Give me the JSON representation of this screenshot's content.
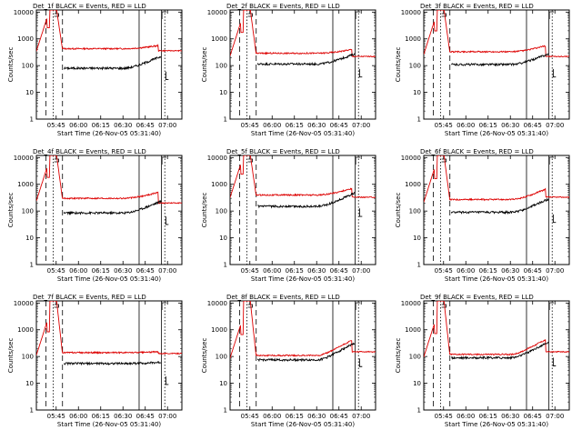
{
  "figure": {
    "start_time_label": "Start Time (26-Nov-05 05:31:40)",
    "ylabel": "Counts/sec",
    "x_tick_labels": [
      "05:45",
      "06:00",
      "06:15",
      "06:30",
      "06:45",
      "07:00"
    ],
    "y_tick_labels": [
      "1",
      "10",
      "100",
      "1000",
      "10000"
    ],
    "colors": {
      "events": "#000000",
      "lld": "#dd0000",
      "axes": "#000000"
    }
  },
  "chart_data": [
    {
      "type": "line",
      "title": "Det_1f BLACK = Events, RED = LLD",
      "xlabel": "Start Time (26-Nov-05 05:31:40)",
      "ylabel": "Counts/sec",
      "yscale": "log",
      "ylim": [
        1,
        12000
      ],
      "xlim_minutes": [
        0,
        98
      ],
      "series": [
        {
          "name": "Events",
          "color": "#000000",
          "base": 80,
          "end": 200
        },
        {
          "name": "LLD",
          "color": "#dd0000",
          "base": 430,
          "end": 560,
          "tail": 360
        }
      ]
    },
    {
      "type": "line",
      "title": "Det_2f BLACK = Events, RED = LLD",
      "xlabel": "Start Time (26-Nov-05 05:31:40)",
      "ylabel": "Counts/sec",
      "yscale": "log",
      "ylim": [
        1,
        12000
      ],
      "xlim_minutes": [
        0,
        98
      ],
      "series": [
        {
          "name": "Events",
          "color": "#000000",
          "base": 115,
          "end": 250
        },
        {
          "name": "LLD",
          "color": "#dd0000",
          "base": 290,
          "end": 400,
          "tail": 220
        }
      ]
    },
    {
      "type": "line",
      "title": "Det_3f BLACK = Events, RED = LLD",
      "xlabel": "Start Time (26-Nov-05 05:31:40)",
      "ylabel": "Counts/sec",
      "yscale": "log",
      "ylim": [
        1,
        12000
      ],
      "xlim_minutes": [
        0,
        98
      ],
      "series": [
        {
          "name": "Events",
          "color": "#000000",
          "base": 110,
          "end": 250
        },
        {
          "name": "LLD",
          "color": "#dd0000",
          "base": 330,
          "end": 550,
          "tail": 220
        }
      ]
    },
    {
      "type": "line",
      "title": "Det_4f BLACK = Events, RED = LLD",
      "xlabel": "Start Time (26-Nov-05 05:31:40)",
      "ylabel": "Counts/sec",
      "yscale": "log",
      "ylim": [
        1,
        12000
      ],
      "xlim_minutes": [
        0,
        98
      ],
      "series": [
        {
          "name": "Events",
          "color": "#000000",
          "base": 85,
          "end": 210
        },
        {
          "name": "LLD",
          "color": "#dd0000",
          "base": 300,
          "end": 500,
          "tail": 200
        }
      ]
    },
    {
      "type": "line",
      "title": "Det_5f BLACK = Events, RED = LLD",
      "xlabel": "Start Time (26-Nov-05 05:31:40)",
      "ylabel": "Counts/sec",
      "yscale": "log",
      "ylim": [
        1,
        12000
      ],
      "xlim_minutes": [
        0,
        98
      ],
      "series": [
        {
          "name": "Events",
          "color": "#000000",
          "base": 150,
          "end": 420
        },
        {
          "name": "LLD",
          "color": "#dd0000",
          "base": 400,
          "end": 700,
          "tail": 330
        }
      ]
    },
    {
      "type": "line",
      "title": "Det_6f BLACK = Events, RED = LLD",
      "xlabel": "Start Time (26-Nov-05 05:31:40)",
      "ylabel": "Counts/sec",
      "yscale": "log",
      "ylim": [
        1,
        12000
      ],
      "xlim_minutes": [
        0,
        98
      ],
      "series": [
        {
          "name": "Events",
          "color": "#000000",
          "base": 90,
          "end": 250
        },
        {
          "name": "LLD",
          "color": "#dd0000",
          "base": 270,
          "end": 650,
          "tail": 330
        }
      ]
    },
    {
      "type": "line",
      "title": "Det_7f BLACK = Events, RED = LLD",
      "xlabel": "Start Time (26-Nov-05 05:31:40)",
      "ylabel": "Counts/sec",
      "yscale": "log",
      "ylim": [
        1,
        12000
      ],
      "xlim_minutes": [
        0,
        98
      ],
      "series": [
        {
          "name": "Events",
          "color": "#000000",
          "base": 55,
          "end": 60
        },
        {
          "name": "LLD",
          "color": "#dd0000",
          "base": 140,
          "end": 150,
          "tail": 130
        }
      ]
    },
    {
      "type": "line",
      "title": "Det_8f BLACK = Events, RED = LLD",
      "xlabel": "Start Time (26-Nov-05 05:31:40)",
      "ylabel": "Counts/sec",
      "yscale": "log",
      "ylim": [
        1,
        12000
      ],
      "xlim_minutes": [
        0,
        98
      ],
      "series": [
        {
          "name": "Events",
          "color": "#000000",
          "base": 75,
          "end": 280
        },
        {
          "name": "LLD",
          "color": "#dd0000",
          "base": 110,
          "end": 400,
          "tail": 150
        }
      ]
    },
    {
      "type": "line",
      "title": "Det_9f BLACK = Events, RED = LLD",
      "xlabel": "Start Time (26-Nov-05 05:31:40)",
      "ylabel": "Counts/sec",
      "yscale": "log",
      "ylim": [
        1,
        12000
      ],
      "xlim_minutes": [
        0,
        98
      ],
      "series": [
        {
          "name": "Events",
          "color": "#000000",
          "base": 90,
          "end": 300
        },
        {
          "name": "LLD",
          "color": "#dd0000",
          "base": 120,
          "end": 420,
          "tail": 150
        }
      ]
    }
  ]
}
